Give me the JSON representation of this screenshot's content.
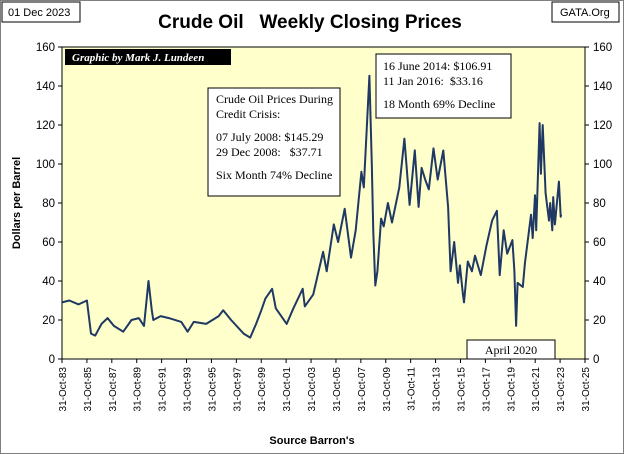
{
  "header": {
    "date_tag": "01 Dec 2023",
    "source_tag": "GATA.Org",
    "title": "Crude Oil   Weekly Closing Prices"
  },
  "credit": "Graphic by Mark J. Lundeen",
  "annotations": {
    "crisis": [
      "Crude Oil Prices During",
      "Credit Crisis:",
      "07 July 2008: $145.29",
      "29 Dec 2008:   $37.71",
      "Six Month 74% Decline"
    ],
    "decline2014": [
      "16 June 2014: $106.91",
      "11 Jan 2016:  $33.16",
      "18 Month 69% Decline"
    ],
    "april2020": "April 2020"
  },
  "colors": {
    "plot_bg": "#ffffcc",
    "line": "#1f3864",
    "credit_bg": "#000000"
  },
  "chart_data": {
    "type": "line",
    "title": "Crude Oil   Weekly Closing Prices",
    "xlabel": "Source Barron's",
    "ylabel": "Dollars per Barrel",
    "ylim": [
      0,
      160
    ],
    "yticks": [
      0,
      20,
      40,
      60,
      80,
      100,
      120,
      140,
      160
    ],
    "xlim": [
      "1983-10-31",
      "2025-10-31"
    ],
    "xtick_labels": [
      "31-Oct-83",
      "31-Oct-85",
      "31-Oct-87",
      "31-Oct-89",
      "31-Oct-91",
      "31-Oct-93",
      "31-Oct-95",
      "31-Oct-97",
      "31-Oct-99",
      "31-Oct-01",
      "31-Oct-03",
      "31-Oct-05",
      "31-Oct-07",
      "31-Oct-09",
      "31-Oct-11",
      "31-Oct-13",
      "31-Oct-15",
      "31-Oct-17",
      "31-Oct-19",
      "31-Oct-21",
      "31-Oct-23",
      "31-Oct-25"
    ],
    "grid": false,
    "series": [
      {
        "points": [
          [
            "1983-10-31",
            29
          ],
          [
            "1984-06-01",
            30
          ],
          [
            "1985-03-01",
            28
          ],
          [
            "1985-11-01",
            30
          ],
          [
            "1986-03-01",
            13
          ],
          [
            "1986-07-01",
            12
          ],
          [
            "1986-10-01",
            15
          ],
          [
            "1987-01-01",
            18
          ],
          [
            "1987-07-01",
            21
          ],
          [
            "1988-01-01",
            17
          ],
          [
            "1988-10-01",
            14
          ],
          [
            "1989-06-01",
            20
          ],
          [
            "1990-01-01",
            21
          ],
          [
            "1990-06-01",
            17
          ],
          [
            "1990-10-10",
            40
          ],
          [
            "1991-01-15",
            25
          ],
          [
            "1991-03-01",
            20
          ],
          [
            "1991-10-01",
            22
          ],
          [
            "1992-06-01",
            21
          ],
          [
            "1993-06-01",
            19
          ],
          [
            "1993-12-01",
            14
          ],
          [
            "1994-06-01",
            19
          ],
          [
            "1995-06-01",
            18
          ],
          [
            "1996-06-01",
            22
          ],
          [
            "1996-10-10",
            25
          ],
          [
            "1997-06-01",
            20
          ],
          [
            "1998-06-01",
            13
          ],
          [
            "1998-12-10",
            11
          ],
          [
            "1999-06-01",
            18
          ],
          [
            "1999-11-01",
            25
          ],
          [
            "2000-03-01",
            31
          ],
          [
            "2000-09-15",
            36
          ],
          [
            "2001-01-01",
            26
          ],
          [
            "2001-11-15",
            18
          ],
          [
            "2002-06-01",
            26
          ],
          [
            "2003-03-01",
            36
          ],
          [
            "2003-05-01",
            27
          ],
          [
            "2004-01-01",
            33
          ],
          [
            "2004-10-20",
            55
          ],
          [
            "2005-02-01",
            45
          ],
          [
            "2005-08-30",
            69
          ],
          [
            "2006-01-01",
            60
          ],
          [
            "2006-07-15",
            77
          ],
          [
            "2007-01-15",
            52
          ],
          [
            "2007-06-01",
            66
          ],
          [
            "2007-11-15",
            96
          ],
          [
            "2008-01-25",
            88
          ],
          [
            "2008-07-07",
            145.29
          ],
          [
            "2008-09-15",
            100
          ],
          [
            "2008-11-01",
            65
          ],
          [
            "2008-12-29",
            37.71
          ],
          [
            "2009-03-01",
            45
          ],
          [
            "2009-06-15",
            72
          ],
          [
            "2009-09-01",
            68
          ],
          [
            "2010-01-01",
            80
          ],
          [
            "2010-05-01",
            70
          ],
          [
            "2010-12-01",
            88
          ],
          [
            "2011-04-30",
            113
          ],
          [
            "2011-10-01",
            79
          ],
          [
            "2012-03-01",
            107
          ],
          [
            "2012-06-20",
            78
          ],
          [
            "2012-09-15",
            98
          ],
          [
            "2013-01-01",
            92
          ],
          [
            "2013-04-15",
            87
          ],
          [
            "2013-09-01",
            108
          ],
          [
            "2014-01-01",
            92
          ],
          [
            "2014-06-16",
            106.91
          ],
          [
            "2014-11-01",
            78
          ],
          [
            "2015-01-15",
            45
          ],
          [
            "2015-05-01",
            60
          ],
          [
            "2015-08-20",
            39
          ],
          [
            "2015-10-15",
            48
          ],
          [
            "2016-01-11",
            33.16
          ],
          [
            "2016-02-11",
            29
          ],
          [
            "2016-06-01",
            50
          ],
          [
            "2016-10-01",
            45
          ],
          [
            "2017-01-01",
            53
          ],
          [
            "2017-06-20",
            43
          ],
          [
            "2017-12-01",
            58
          ],
          [
            "2018-05-15",
            71
          ],
          [
            "2018-10-03",
            76
          ],
          [
            "2018-12-24",
            43
          ],
          [
            "2019-04-20",
            66
          ],
          [
            "2019-08-01",
            54
          ],
          [
            "2019-12-31",
            61
          ],
          [
            "2020-03-01",
            45
          ],
          [
            "2020-04-20",
            17
          ],
          [
            "2020-06-01",
            39
          ],
          [
            "2020-11-01",
            37
          ],
          [
            "2021-01-01",
            49
          ],
          [
            "2021-06-30",
            74
          ],
          [
            "2021-08-20",
            62
          ],
          [
            "2021-10-25",
            84
          ],
          [
            "2021-12-01",
            66
          ],
          [
            "2022-03-08",
            121
          ],
          [
            "2022-04-15",
            95
          ],
          [
            "2022-06-08",
            120
          ],
          [
            "2022-09-01",
            85
          ],
          [
            "2022-12-09",
            71
          ],
          [
            "2023-01-15",
            80
          ],
          [
            "2023-03-17",
            66
          ],
          [
            "2023-04-12",
            83
          ],
          [
            "2023-06-01",
            69
          ],
          [
            "2023-09-27",
            91
          ],
          [
            "2023-11-17",
            73
          ],
          [
            "2023-12-01",
            74
          ]
        ]
      }
    ]
  }
}
